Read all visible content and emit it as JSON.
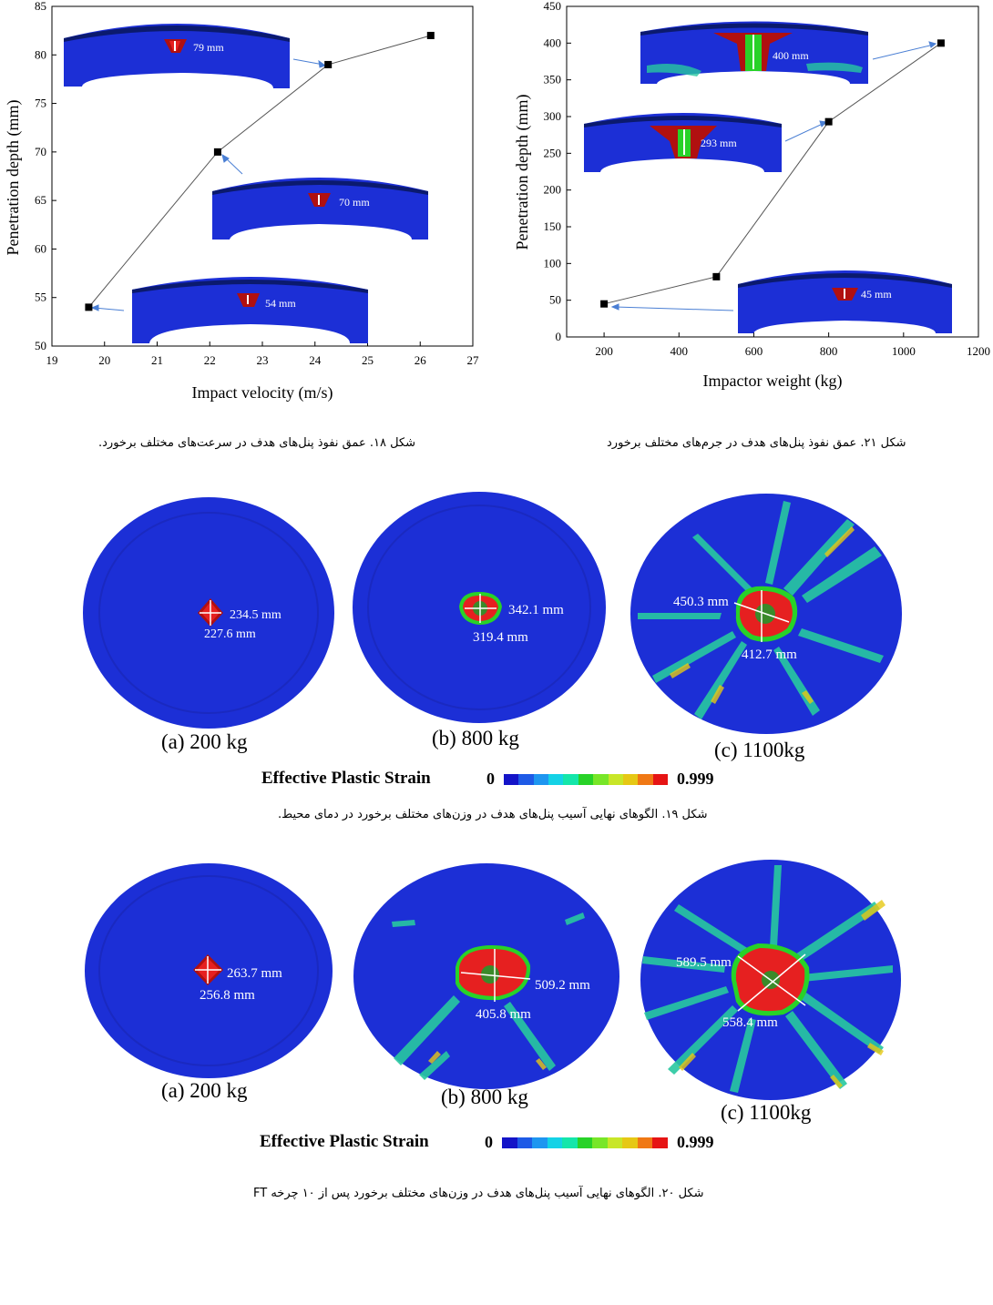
{
  "chart_data": [
    {
      "type": "line",
      "xlabel": "Impact velocity (m/s)",
      "ylabel": "Penetration depth (mm)",
      "xlim": [
        19,
        27
      ],
      "ylim": [
        50,
        85
      ],
      "xticks": [
        19,
        20,
        21,
        22,
        23,
        24,
        25,
        26,
        27
      ],
      "yticks": [
        50,
        55,
        60,
        65,
        70,
        75,
        80,
        85
      ],
      "x": [
        19.7,
        22.15,
        24.25,
        26.2
      ],
      "y": [
        54,
        70,
        79,
        82
      ],
      "insets": [
        {
          "label": "79 mm",
          "value": 79,
          "color": "#1c2fd6"
        },
        {
          "label": "70 mm",
          "value": 70,
          "color": "#1c2fd6"
        },
        {
          "label": "54 mm",
          "value": 54,
          "color": "#1c2fd6"
        }
      ],
      "grid": false
    },
    {
      "type": "line",
      "xlabel": "Impactor weight (kg)",
      "ylabel": "Penetration depth (mm)",
      "xlim": [
        100,
        1200
      ],
      "ylim": [
        0,
        450
      ],
      "xticks": [
        200,
        400,
        600,
        800,
        1000,
        1200
      ],
      "yticks": [
        0,
        50,
        100,
        150,
        200,
        250,
        300,
        350,
        400,
        450
      ],
      "x": [
        200,
        500,
        800,
        1100
      ],
      "y": [
        45,
        82,
        293,
        400
      ],
      "insets": [
        {
          "label": "400 mm",
          "value": 400
        },
        {
          "label": "293 mm",
          "value": 293
        },
        {
          "label": "45 mm",
          "value": 45
        }
      ],
      "grid": false
    }
  ],
  "captions": {
    "fig18": "شکل ۱۸. عمق نفوذ پنل‌های هدف در سرعت‌های مختلف برخورد.",
    "fig21": "شکل ۲۱. عمق نفوذ پنل‌های هدف در جرم‌های مختلف برخورد",
    "fig19": "شکل ۱۹. الگوهای نهایی آسیب پنل‌های هدف در وزن‌های مختلف برخورد در دمای محیط.",
    "fig20": "شکل ۲۰. الگوهای نهایی آسیب پنل‌های هدف در وزن‌های مختلف برخورد پس از ۱۰ چرخه FT"
  },
  "figure19": {
    "panels": [
      {
        "label": "(a) 200 kg",
        "d1": "234.5 mm",
        "d2": "227.6 mm"
      },
      {
        "label": "(b) 800 kg",
        "d1": "342.1 mm",
        "d2": "319.4 mm"
      },
      {
        "label": "(c) 1100kg",
        "d1": "450.3 mm",
        "d2": "412.7 mm"
      }
    ],
    "legend": {
      "title": "Effective Plastic Strain",
      "min": "0",
      "max": "0.999"
    }
  },
  "figure20": {
    "panels": [
      {
        "label": "(a) 200 kg",
        "d1": "263.7 mm",
        "d2": "256.8 mm"
      },
      {
        "label": "(b) 800 kg",
        "d1": "509.2 mm",
        "d2": "405.8 mm"
      },
      {
        "label": "(c) 1100kg",
        "d1": "589.5 mm",
        "d2": "558.4 mm"
      }
    ],
    "legend": {
      "title": "Effective Plastic Strain",
      "min": "0",
      "max": "0.999"
    }
  },
  "colors": {
    "fringe": [
      "#1414c8",
      "#1e5ae6",
      "#1e96f0",
      "#14d2e6",
      "#14e6aa",
      "#28d228",
      "#78e628",
      "#c8e628",
      "#e6c814",
      "#f07814",
      "#e61414"
    ],
    "panel_blue": "#1c2fd6",
    "panel_dark": "#0b1a6e"
  }
}
